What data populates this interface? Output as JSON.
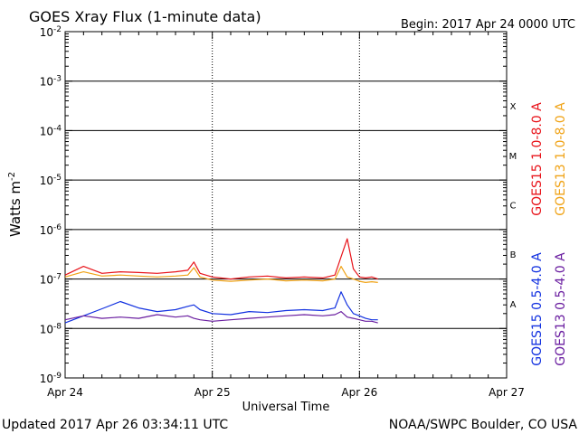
{
  "colors": {
    "goes15_long": "#e8131a",
    "goes13_long": "#f0a317",
    "goes15_short": "#1231e0",
    "goes13_short": "#6a1ea0",
    "grid": "#000000",
    "background": "#ffffff"
  },
  "header": {
    "title": "GOES Xray Flux (1-minute data)",
    "begin": "Begin:  2017 Apr 24 0000 UTC"
  },
  "footer": {
    "updated": "Updated 2017 Apr 26 03:34:11 UTC",
    "credit": "NOAA/SWPC Boulder, CO USA"
  },
  "chart_data": {
    "type": "line",
    "title": "GOES Xray Flux (1-minute data)",
    "xlabel": "Universal Time",
    "ylabel": "Watts m-2",
    "ylabel_base": "Watts m",
    "ylabel_exp": "-2",
    "y_scale": "log",
    "ylim": [
      1e-09,
      0.01
    ],
    "xlim": [
      "2017-04-24",
      "2017-04-27"
    ],
    "x_ticks": [
      "Apr 24",
      "Apr 25",
      "Apr 26",
      "Apr 27"
    ],
    "y_ticks": [
      {
        "value": 0.01,
        "base": "10",
        "exp": "-2"
      },
      {
        "value": 0.001,
        "base": "10",
        "exp": "-3"
      },
      {
        "value": 0.0001,
        "base": "10",
        "exp": "-4"
      },
      {
        "value": 1e-05,
        "base": "10",
        "exp": "-5"
      },
      {
        "value": 1e-06,
        "base": "10",
        "exp": "-6"
      },
      {
        "value": 1e-07,
        "base": "10",
        "exp": "-7"
      },
      {
        "value": 1e-08,
        "base": "10",
        "exp": "-8"
      },
      {
        "value": 1e-09,
        "base": "10",
        "exp": "-9"
      }
    ],
    "flare_classes": [
      {
        "label": "X",
        "value": 0.000316
      },
      {
        "label": "M",
        "value": 3.16e-05
      },
      {
        "label": "C",
        "value": 3.16e-06
      },
      {
        "label": "B",
        "value": 3.16e-07
      },
      {
        "label": "A",
        "value": 3.16e-08
      }
    ],
    "grid": true,
    "legend_position": "right, rotated vertical",
    "series": [
      {
        "name": "GOES15 1.0-8.0 A",
        "color": "#e8131a",
        "x": [
          "2017-04-24 00:00",
          "2017-04-24 03:00",
          "2017-04-24 06:00",
          "2017-04-24 09:00",
          "2017-04-24 12:00",
          "2017-04-24 15:00",
          "2017-04-24 18:00",
          "2017-04-24 20:00",
          "2017-04-24 21:00",
          "2017-04-24 22:00",
          "2017-04-25 00:00",
          "2017-04-25 03:00",
          "2017-04-25 06:00",
          "2017-04-25 09:00",
          "2017-04-25 12:00",
          "2017-04-25 15:00",
          "2017-04-25 18:00",
          "2017-04-25 20:00",
          "2017-04-25 21:00",
          "2017-04-25 22:00",
          "2017-04-25 23:00",
          "2017-04-26 00:00",
          "2017-04-26 01:00",
          "2017-04-26 02:00",
          "2017-04-26 03:00"
        ],
        "y": [
          1.2e-07,
          1.8e-07,
          1.3e-07,
          1.4e-07,
          1.35e-07,
          1.3e-07,
          1.4e-07,
          1.5e-07,
          2.2e-07,
          1.3e-07,
          1.1e-07,
          1e-07,
          1.1e-07,
          1.15e-07,
          1.05e-07,
          1.1e-07,
          1.05e-07,
          1.2e-07,
          2.8e-07,
          6.5e-07,
          1.6e-07,
          1.1e-07,
          1.05e-07,
          1.1e-07,
          1e-07
        ]
      },
      {
        "name": "GOES13 1.0-8.0 A",
        "color": "#f0a317",
        "x": [
          "2017-04-24 00:00",
          "2017-04-24 03:00",
          "2017-04-24 06:00",
          "2017-04-24 09:00",
          "2017-04-24 12:00",
          "2017-04-24 15:00",
          "2017-04-24 18:00",
          "2017-04-24 20:00",
          "2017-04-24 21:00",
          "2017-04-24 22:00",
          "2017-04-25 00:00",
          "2017-04-25 03:00",
          "2017-04-25 06:00",
          "2017-04-25 09:00",
          "2017-04-25 12:00",
          "2017-04-25 15:00",
          "2017-04-25 18:00",
          "2017-04-25 20:00",
          "2017-04-25 21:00",
          "2017-04-25 22:00",
          "2017-04-25 23:00",
          "2017-04-26 00:00",
          "2017-04-26 01:00",
          "2017-04-26 02:00",
          "2017-04-26 03:00"
        ],
        "y": [
          1.1e-07,
          1.4e-07,
          1.15e-07,
          1.2e-07,
          1.15e-07,
          1.1e-07,
          1.15e-07,
          1.2e-07,
          1.7e-07,
          1.1e-07,
          9.5e-08,
          9e-08,
          9.5e-08,
          1e-07,
          9.2e-08,
          9.5e-08,
          9.2e-08,
          1e-07,
          1.8e-07,
          1.1e-07,
          1e-07,
          9e-08,
          8.5e-08,
          8.8e-08,
          8.5e-08
        ]
      },
      {
        "name": "GOES15 0.5-4.0 A",
        "color": "#1231e0",
        "x": [
          "2017-04-24 00:00",
          "2017-04-24 03:00",
          "2017-04-24 06:00",
          "2017-04-24 09:00",
          "2017-04-24 12:00",
          "2017-04-24 15:00",
          "2017-04-24 18:00",
          "2017-04-24 20:00",
          "2017-04-24 21:00",
          "2017-04-24 22:00",
          "2017-04-25 00:00",
          "2017-04-25 03:00",
          "2017-04-25 06:00",
          "2017-04-25 09:00",
          "2017-04-25 12:00",
          "2017-04-25 15:00",
          "2017-04-25 18:00",
          "2017-04-25 20:00",
          "2017-04-25 21:00",
          "2017-04-25 22:00",
          "2017-04-25 23:00",
          "2017-04-26 00:00",
          "2017-04-26 01:00",
          "2017-04-26 02:00",
          "2017-04-26 03:00"
        ],
        "y": [
          1.3e-08,
          1.8e-08,
          2.5e-08,
          3.5e-08,
          2.6e-08,
          2.2e-08,
          2.4e-08,
          2.8e-08,
          3e-08,
          2.4e-08,
          2e-08,
          1.9e-08,
          2.2e-08,
          2.1e-08,
          2.3e-08,
          2.4e-08,
          2.3e-08,
          2.6e-08,
          5.5e-08,
          3e-08,
          2e-08,
          1.8e-08,
          1.6e-08,
          1.5e-08,
          1.5e-08
        ]
      },
      {
        "name": "GOES13 0.5-4.0 A",
        "color": "#6a1ea0",
        "x": [
          "2017-04-24 00:00",
          "2017-04-24 03:00",
          "2017-04-24 06:00",
          "2017-04-24 09:00",
          "2017-04-24 12:00",
          "2017-04-24 15:00",
          "2017-04-24 18:00",
          "2017-04-24 20:00",
          "2017-04-24 21:00",
          "2017-04-24 22:00",
          "2017-04-25 00:00",
          "2017-04-25 03:00",
          "2017-04-25 06:00",
          "2017-04-25 09:00",
          "2017-04-25 12:00",
          "2017-04-25 15:00",
          "2017-04-25 18:00",
          "2017-04-25 20:00",
          "2017-04-25 21:00",
          "2017-04-25 22:00",
          "2017-04-25 23:00",
          "2017-04-26 00:00",
          "2017-04-26 01:00",
          "2017-04-26 02:00",
          "2017-04-26 03:00"
        ],
        "y": [
          1.5e-08,
          1.8e-08,
          1.6e-08,
          1.7e-08,
          1.6e-08,
          1.9e-08,
          1.7e-08,
          1.8e-08,
          1.6e-08,
          1.5e-08,
          1.4e-08,
          1.5e-08,
          1.6e-08,
          1.7e-08,
          1.8e-08,
          1.9e-08,
          1.8e-08,
          1.9e-08,
          2.2e-08,
          1.7e-08,
          1.6e-08,
          1.5e-08,
          1.4e-08,
          1.4e-08,
          1.3e-08
        ]
      }
    ]
  }
}
